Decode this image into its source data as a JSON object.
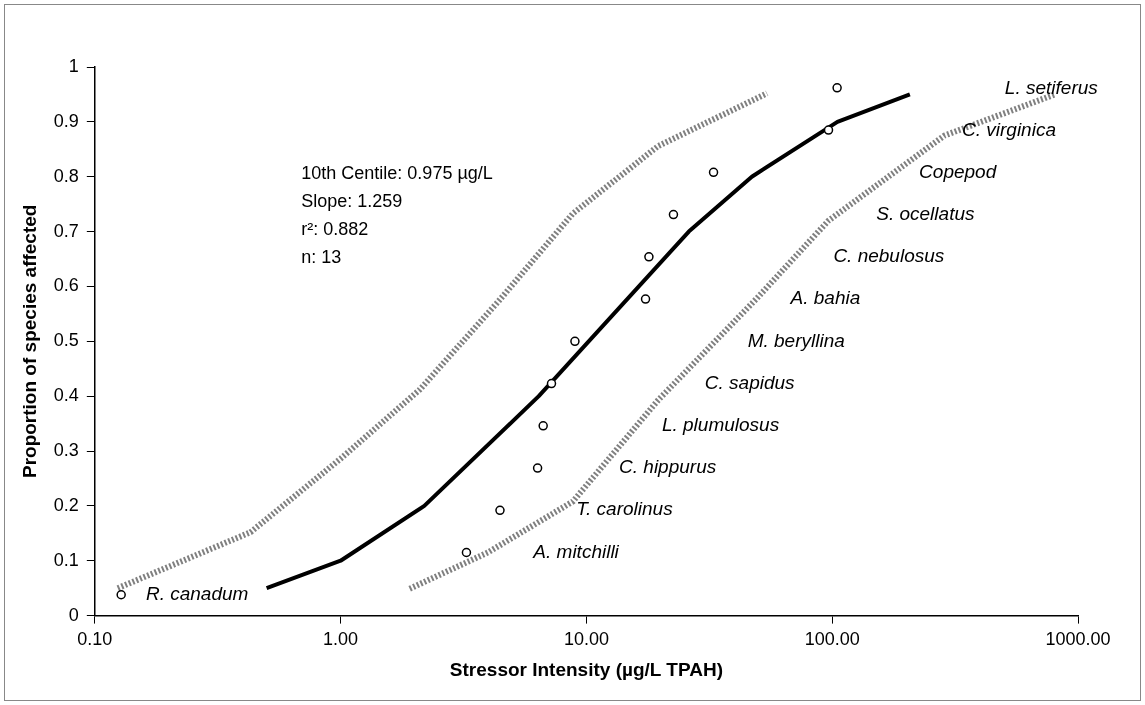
{
  "chart_data": {
    "type": "scatter",
    "xlabel": "Stressor Intensity (µg/L TPAH)",
    "ylabel": "Proportion of species affected",
    "log": "x",
    "xlim": [
      0.1,
      1000
    ],
    "xticks": [
      {
        "value": 0.1,
        "label": "0.10"
      },
      {
        "value": 1,
        "label": "1.00"
      },
      {
        "value": 10,
        "label": "10.00"
      },
      {
        "value": 100,
        "label": "100.00"
      },
      {
        "value": 1000,
        "label": "1000.00"
      }
    ],
    "ylim": [
      0,
      1
    ],
    "yticks": [
      0,
      0.1,
      0.2,
      0.3,
      0.4,
      0.5,
      0.6,
      0.7,
      0.8,
      0.9,
      1
    ],
    "grid": false,
    "legend": false,
    "series": [
      {
        "type": "line",
        "color": "#808080",
        "line_style": "dotted",
        "marker": "none",
        "x": [
          0.124,
          0.43,
          1.0,
          2.1,
          4.37,
          8.81,
          19.6,
          54.3
        ],
        "values": [
          0.05,
          0.152,
          0.286,
          0.412,
          0.572,
          0.733,
          0.856,
          0.952
        ]
      },
      {
        "type": "line",
        "color": "#808080",
        "line_style": "dotted",
        "marker": "none",
        "x": [
          1.91,
          3.97,
          8.81,
          19.6,
          49.3,
          96.6,
          286,
          805
        ],
        "values": [
          0.049,
          0.115,
          0.208,
          0.393,
          0.578,
          0.72,
          0.875,
          0.95
        ]
      },
      {
        "type": "line",
        "color": "#000000",
        "line_style": "solid",
        "marker": "none",
        "x": [
          0.5,
          1.0,
          2.19,
          6.4,
          26.1,
          47.1,
          105,
          207
        ],
        "values": [
          0.05,
          0.1,
          0.2,
          0.4,
          0.7,
          0.8,
          0.9,
          0.95
        ]
      },
      {
        "color": "#000000",
        "marker": "circle",
        "x": [
          0.128,
          3.25,
          4.45,
          6.33,
          6.67,
          7.21,
          8.98,
          17.4,
          17.96,
          22.6,
          32.9,
          96.6,
          104.7
        ],
        "values": [
          0.038,
          0.115,
          0.192,
          0.269,
          0.346,
          0.423,
          0.5,
          0.577,
          0.654,
          0.731,
          0.808,
          0.885,
          0.962
        ]
      }
    ],
    "annotations": [
      "10th Centile: 0.975 µg/L",
      "Slope: 1.259",
      "r²: 0.882",
      "n: 13",
      "R. canadum",
      "A. mitchilli",
      "T. carolinus",
      "C. hippurus",
      "L. plumulosus",
      "C. sapidus",
      "M. beryllina",
      "A. bahia",
      "C. nebulosus",
      "S. ocellatus",
      "Copepod",
      "C. virginica",
      "L. setiferus"
    ]
  }
}
